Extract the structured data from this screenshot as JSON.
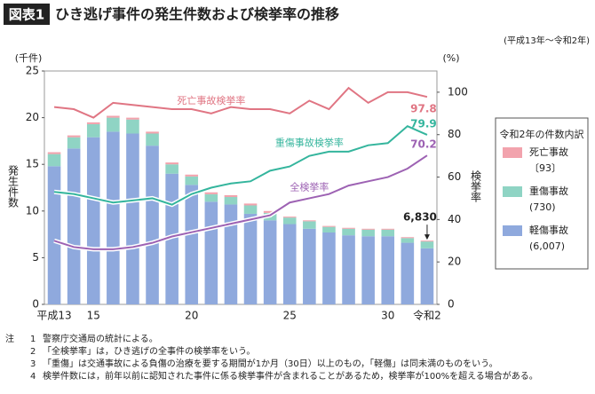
{
  "header": {
    "badge": "図表1",
    "title": "ひき逃げ事件の発生件数および検挙率の推移",
    "period": "(平成13年～令和2年)"
  },
  "chart_data": {
    "type": "combo",
    "categories": [
      "平成13",
      null,
      "15",
      null,
      null,
      null,
      null,
      "20",
      null,
      null,
      null,
      null,
      "25",
      null,
      null,
      null,
      null,
      "30",
      null,
      "令和2"
    ],
    "y_label": "発生件数",
    "y_unit": "(千件)",
    "y2_label": "検挙率",
    "y2_unit": "(%)",
    "ylim": [
      0,
      25
    ],
    "yticks": [
      0,
      5,
      10,
      15,
      20,
      25
    ],
    "y2lim": [
      0,
      110
    ],
    "y2ticks": [
      0,
      20,
      40,
      60,
      80,
      100
    ],
    "series": [
      {
        "name": "軽傷事故",
        "legend_note": "(6,007)",
        "type": "bar",
        "color": "#8fa9dd",
        "values": [
          14.8,
          16.7,
          17.9,
          18.5,
          18.3,
          17.0,
          14.0,
          12.8,
          11.0,
          10.7,
          9.7,
          9.0,
          8.6,
          8.1,
          7.7,
          7.4,
          7.3,
          7.3,
          6.6,
          6.007
        ]
      },
      {
        "name": "重傷事故",
        "legend_note": "(730)",
        "type": "bar",
        "color": "#8fd4c4",
        "values": [
          1.3,
          1.2,
          1.4,
          1.5,
          1.5,
          1.3,
          1.0,
          0.9,
          0.8,
          0.8,
          0.9,
          0.8,
          0.7,
          0.8,
          0.6,
          0.7,
          0.7,
          0.7,
          0.5,
          0.73
        ]
      },
      {
        "name": "死亡事故",
        "legend_note": "〔93〕",
        "type": "bar",
        "color": "#f2a3ad",
        "values": [
          0.2,
          0.2,
          0.2,
          0.2,
          0.2,
          0.2,
          0.2,
          0.2,
          0.2,
          0.2,
          0.2,
          0.2,
          0.1,
          0.1,
          0.1,
          0.1,
          0.1,
          0.1,
          0.1,
          0.093
        ]
      },
      {
        "name": "死亡事故検挙率",
        "type": "line",
        "axis": "y2",
        "color": "#e07583",
        "values": [
          93,
          92,
          88,
          95,
          94,
          93,
          92,
          92,
          90,
          93,
          92,
          92,
          90,
          96,
          92,
          102,
          95,
          100,
          100,
          97.8
        ]
      },
      {
        "name": "重傷事故検挙率",
        "type": "line",
        "axis": "y2",
        "color": "#34b59d",
        "values": [
          53,
          52,
          50,
          48,
          49,
          50,
          47,
          52,
          55,
          57,
          58,
          63,
          65,
          70,
          72,
          72,
          75,
          76,
          84,
          79.9
        ]
      },
      {
        "name": "全検挙率",
        "type": "line",
        "axis": "y2",
        "color": "#9d62b3",
        "values": [
          30,
          27,
          26,
          26,
          27,
          29,
          32,
          34,
          36,
          38,
          40,
          42,
          48,
          50,
          52,
          56,
          58,
          60,
          64,
          70.2
        ]
      }
    ],
    "legend_title": "令和2年の件数内訳",
    "total_annotation": {
      "value": 6.83,
      "label": "6,830"
    }
  },
  "notes": {
    "label": "注",
    "items": [
      [
        "1",
        "警察庁交通局の統計による。"
      ],
      [
        "2",
        "「全検挙率」は，ひき逃げの全事件の検挙率をいう。"
      ],
      [
        "3",
        "「重傷」は交通事故による負傷の治療を要する期間が1か月（30日）以上のもの，「軽傷」は同未満のものをいう。"
      ],
      [
        "4",
        "検挙件数には，前年以前に認知された事件に係る検挙事件が含まれることがあるため，検挙率が100%を超える場合がある。"
      ]
    ]
  }
}
